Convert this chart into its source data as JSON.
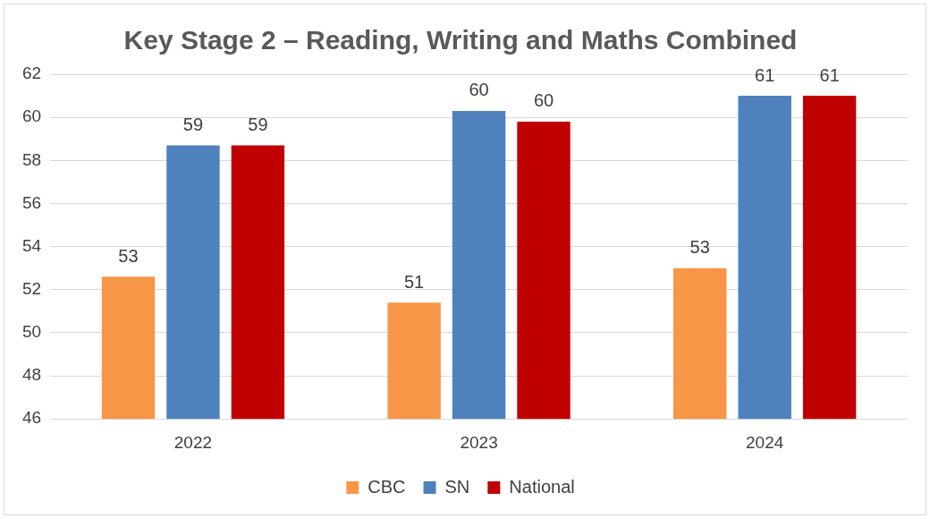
{
  "chart_data": {
    "type": "bar",
    "title": "Key Stage 2 – Reading, Writing and Maths Combined",
    "categories": [
      "2022",
      "2023",
      "2024"
    ],
    "series": [
      {
        "name": "CBC",
        "color": "#f79646",
        "values": [
          52.6,
          51.4,
          53.0
        ],
        "value_labels": [
          "53",
          "51",
          "53"
        ]
      },
      {
        "name": "SN",
        "color": "#4f81bd",
        "values": [
          58.7,
          60.3,
          61.0
        ],
        "value_labels": [
          "59",
          "60",
          "61"
        ]
      },
      {
        "name": "National",
        "color": "#c00000",
        "values": [
          58.7,
          59.8,
          61.0
        ],
        "value_labels": [
          "59",
          "60",
          "61"
        ]
      }
    ],
    "ylim": [
      46,
      62
    ],
    "yticks": [
      46,
      48,
      50,
      52,
      54,
      56,
      58,
      60,
      62
    ],
    "grid": "y",
    "legend": "bottom"
  }
}
